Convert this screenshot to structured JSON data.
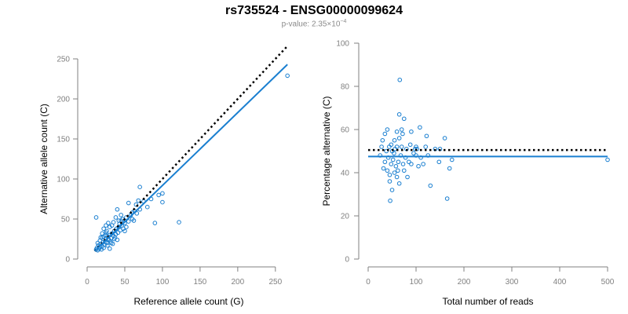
{
  "title": "rs735524 - ENSG00000099624",
  "subtitle": {
    "prefix": "p-value: 2.35×10",
    "exponent": "−4"
  },
  "colors": {
    "point": "#1a7fd0",
    "fit": "#1a7fd0",
    "reference": "#000000",
    "axis": "#808080"
  },
  "chart_data": [
    {
      "type": "scatter",
      "xlabel": "Reference allele count (G)",
      "ylabel": "Alternative allele count (C)",
      "xlim": [
        0,
        270
      ],
      "ylim": [
        0,
        250
      ],
      "xticks": [
        0,
        50,
        100,
        150,
        200,
        250
      ],
      "yticks": [
        0,
        50,
        100,
        150,
        200,
        250
      ],
      "grid": false,
      "points": [
        [
          12,
          12
        ],
        [
          13,
          14
        ],
        [
          14,
          11
        ],
        [
          15,
          17
        ],
        [
          16,
          13
        ],
        [
          17,
          15
        ],
        [
          18,
          19
        ],
        [
          19,
          12
        ],
        [
          20,
          16
        ],
        [
          21,
          21
        ],
        [
          22,
          14
        ],
        [
          23,
          18
        ],
        [
          24,
          22
        ],
        [
          25,
          25
        ],
        [
          26,
          20
        ],
        [
          27,
          17
        ],
        [
          28,
          28
        ],
        [
          29,
          24
        ],
        [
          30,
          30
        ],
        [
          31,
          22
        ],
        [
          32,
          26
        ],
        [
          33,
          32
        ],
        [
          34,
          19
        ],
        [
          35,
          29
        ],
        [
          36,
          35
        ],
        [
          37,
          27
        ],
        [
          38,
          31
        ],
        [
          39,
          38
        ],
        [
          40,
          24
        ],
        [
          41,
          33
        ],
        [
          42,
          40
        ],
        [
          43,
          44
        ],
        [
          44,
          36
        ],
        [
          45,
          48
        ],
        [
          46,
          42
        ],
        [
          47,
          50
        ],
        [
          48,
          38
        ],
        [
          50,
          45
        ],
        [
          52,
          52
        ],
        [
          55,
          47
        ],
        [
          58,
          55
        ],
        [
          60,
          50
        ],
        [
          63,
          60
        ],
        [
          66,
          57
        ],
        [
          70,
          62
        ],
        [
          12,
          52
        ],
        [
          20,
          32
        ],
        [
          22,
          38
        ],
        [
          25,
          42
        ],
        [
          28,
          45
        ],
        [
          30,
          40
        ],
        [
          33,
          42
        ],
        [
          35,
          46
        ],
        [
          38,
          52
        ],
        [
          40,
          62
        ],
        [
          42,
          48
        ],
        [
          45,
          55
        ],
        [
          50,
          35
        ],
        [
          52,
          40
        ],
        [
          55,
          70
        ],
        [
          60,
          58
        ],
        [
          62,
          48
        ],
        [
          65,
          68
        ],
        [
          68,
          73
        ],
        [
          70,
          90
        ],
        [
          75,
          72
        ],
        [
          80,
          65
        ],
        [
          85,
          75
        ],
        [
          90,
          45
        ],
        [
          95,
          80
        ],
        [
          100,
          82
        ],
        [
          100,
          71
        ],
        [
          122,
          46
        ],
        [
          14,
          20
        ],
        [
          17,
          23
        ],
        [
          20,
          27
        ],
        [
          24,
          30
        ],
        [
          26,
          35
        ],
        [
          28,
          25
        ],
        [
          32,
          20
        ],
        [
          36,
          25
        ],
        [
          30,
          13
        ],
        [
          18,
          27
        ],
        [
          22,
          28
        ],
        [
          25,
          33
        ],
        [
          266,
          229
        ]
      ],
      "fit_line": {
        "x": [
          10,
          266
        ],
        "y": [
          10,
          243
        ]
      },
      "reference_line": {
        "x": [
          10,
          266
        ],
        "y": [
          10,
          266
        ]
      }
    },
    {
      "type": "scatter",
      "xlabel": "Total number of reads",
      "ylabel": "Percentage alternative (C)",
      "xlim": [
        0,
        500
      ],
      "ylim": [
        0,
        100
      ],
      "xticks": [
        0,
        100,
        200,
        300,
        400,
        500
      ],
      "yticks": [
        0,
        20,
        40,
        60,
        80,
        100
      ],
      "grid": false,
      "points": [
        [
          25,
          48
        ],
        [
          28,
          52
        ],
        [
          30,
          55
        ],
        [
          32,
          42
        ],
        [
          35,
          45
        ],
        [
          35,
          58
        ],
        [
          38,
          50
        ],
        [
          40,
          60
        ],
        [
          40,
          41
        ],
        [
          42,
          47
        ],
        [
          44,
          52
        ],
        [
          45,
          36
        ],
        [
          45,
          39
        ],
        [
          46,
          27
        ],
        [
          48,
          53
        ],
        [
          48,
          44
        ],
        [
          50,
          50
        ],
        [
          50,
          32
        ],
        [
          52,
          46
        ],
        [
          54,
          49
        ],
        [
          55,
          55
        ],
        [
          55,
          40
        ],
        [
          56,
          51
        ],
        [
          58,
          43
        ],
        [
          60,
          52
        ],
        [
          60,
          59
        ],
        [
          60,
          38
        ],
        [
          62,
          41
        ],
        [
          63,
          45
        ],
        [
          65,
          56
        ],
        [
          65,
          35
        ],
        [
          65,
          67
        ],
        [
          66,
          83
        ],
        [
          68,
          48
        ],
        [
          70,
          52
        ],
        [
          70,
          60
        ],
        [
          72,
          58
        ],
        [
          73,
          44
        ],
        [
          75,
          65
        ],
        [
          75,
          41
        ],
        [
          78,
          47
        ],
        [
          80,
          51
        ],
        [
          82,
          38
        ],
        [
          85,
          45
        ],
        [
          88,
          53
        ],
        [
          90,
          44
        ],
        [
          90,
          59
        ],
        [
          95,
          49
        ],
        [
          98,
          51
        ],
        [
          100,
          52
        ],
        [
          100,
          48
        ],
        [
          102,
          51
        ],
        [
          105,
          43
        ],
        [
          108,
          61
        ],
        [
          110,
          47
        ],
        [
          115,
          44
        ],
        [
          120,
          52
        ],
        [
          122,
          57
        ],
        [
          125,
          48
        ],
        [
          130,
          34
        ],
        [
          140,
          51
        ],
        [
          148,
          45
        ],
        [
          150,
          51
        ],
        [
          160,
          56
        ],
        [
          165,
          28
        ],
        [
          170,
          42
        ],
        [
          175,
          46
        ],
        [
          500,
          46
        ]
      ],
      "fit_line": {
        "x": [
          0,
          500
        ],
        "y": [
          47.5,
          47.5
        ]
      },
      "reference_line": {
        "x": [
          0,
          500
        ],
        "y": [
          50.5,
          50.5
        ]
      }
    }
  ]
}
